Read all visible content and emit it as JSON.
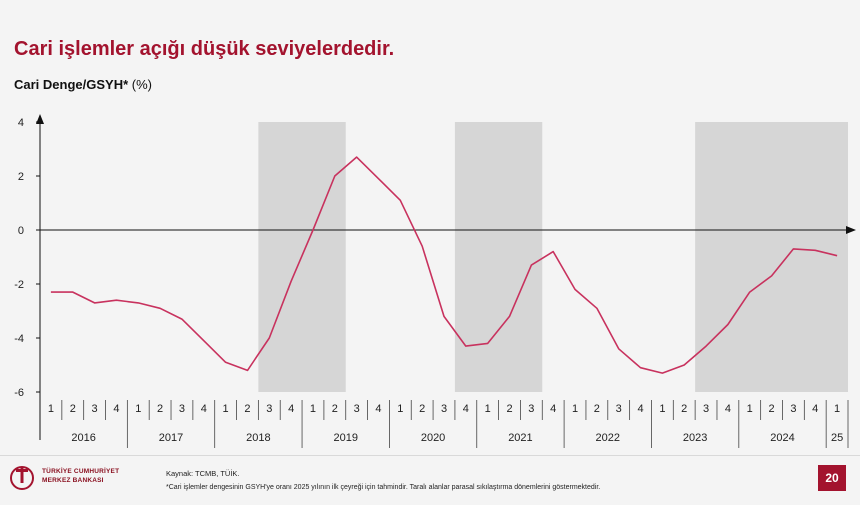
{
  "header": {
    "title": "Cari işlemler açığı düşük seviyelerdedir.",
    "subtitle": "Cari Denge/GSYH*",
    "unit": "(%)"
  },
  "footer": {
    "logo_line1": "TÜRKİYE CUMHURİYET",
    "logo_line2": "MERKEZ BANKASI",
    "source": "Kaynak: TCMB, TÜİK.",
    "note": "*Cari işlemler dengesinin GSYH'ye oranı 2025 yılının ilk çeyreği için tahmindir. Taralı alanlar parasal sıkılaştırma dönemlerini göstermektedir.",
    "page_number": "20"
  },
  "colors": {
    "brand": "#a3132e",
    "line": "#c8325e",
    "shade": "#d6d6d6",
    "background": "#f4f4f4"
  },
  "chart_data": {
    "type": "line",
    "title": "",
    "ylabel": "",
    "xlabel": "",
    "ylim": [
      -6,
      4
    ],
    "y_ticks": [
      4,
      2,
      0,
      -2,
      -4,
      -6
    ],
    "grid": false,
    "x_quarter_labels": [
      "1",
      "2",
      "3",
      "4",
      "1",
      "2",
      "3",
      "4",
      "1",
      "2",
      "3",
      "4",
      "1",
      "2",
      "3",
      "4",
      "1",
      "2",
      "3",
      "4",
      "1",
      "2",
      "3",
      "4",
      "1",
      "2",
      "3",
      "4",
      "1",
      "2",
      "3",
      "4",
      "1",
      "2",
      "3",
      "4",
      "1"
    ],
    "years": [
      {
        "label": "2016",
        "quarters": 4
      },
      {
        "label": "2017",
        "quarters": 4
      },
      {
        "label": "2018",
        "quarters": 4
      },
      {
        "label": "2019",
        "quarters": 4
      },
      {
        "label": "2020",
        "quarters": 4
      },
      {
        "label": "2021",
        "quarters": 4
      },
      {
        "label": "2022",
        "quarters": 4
      },
      {
        "label": "2023",
        "quarters": 4
      },
      {
        "label": "2024",
        "quarters": 4
      },
      {
        "label": "25",
        "quarters": 1
      }
    ],
    "series": [
      {
        "values": [
          -2.3,
          -2.3,
          -2.7,
          -2.6,
          -2.7,
          -2.9,
          -3.3,
          -4.1,
          -4.9,
          -5.2,
          -4.0,
          -1.9,
          0.0,
          2.0,
          2.7,
          1.9,
          1.1,
          -0.6,
          -3.2,
          -4.3,
          -4.2,
          -3.2,
          -1.3,
          -0.8,
          -2.2,
          -2.9,
          -4.4,
          -5.1,
          -5.3,
          -5.0,
          -4.3,
          -3.5,
          -2.3,
          -1.7,
          -0.7,
          -0.75,
          -0.95
        ]
      }
    ],
    "shaded_periods": [
      {
        "start_index": 10,
        "end_index": 14
      },
      {
        "start_index": 19,
        "end_index": 23
      },
      {
        "start_index": 30,
        "end_index": 37
      }
    ]
  }
}
